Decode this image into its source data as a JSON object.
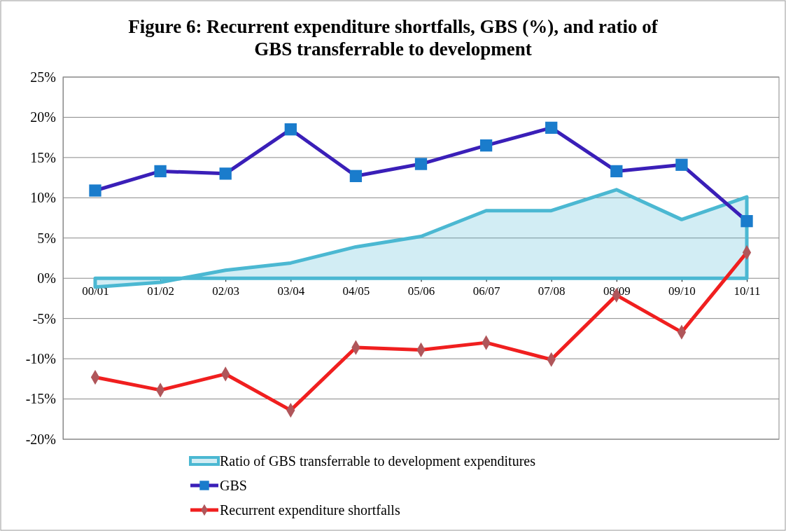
{
  "chart_data": {
    "type": "line",
    "title": "Figure 6: Recurrent expenditure shortfalls, GBS (%), and ratio of GBS transferrable to development",
    "categories": [
      "00/01",
      "01/02",
      "02/03",
      "03/04",
      "04/05",
      "05/06",
      "06/07",
      "07/08",
      "08/09",
      "09/10",
      "10/11"
    ],
    "series": [
      {
        "name": "Ratio of GBS transferrable to development expenditures",
        "type": "area",
        "color": "#4bb8d2",
        "marker": "none",
        "values": [
          -1.1,
          -0.5,
          1.0,
          1.9,
          3.9,
          5.2,
          8.4,
          8.4,
          11.0,
          7.3,
          10.1
        ]
      },
      {
        "name": "GBS",
        "color": "#3a1fb8",
        "marker": "square",
        "values": [
          10.9,
          13.3,
          13.0,
          18.5,
          12.7,
          14.2,
          16.5,
          18.7,
          13.3,
          14.1,
          7.1
        ]
      },
      {
        "name": "Recurrent expenditure shortfalls",
        "color": "#f01f1f",
        "marker": "diamond",
        "values": [
          -12.3,
          -13.9,
          -11.9,
          -16.4,
          -8.6,
          -8.9,
          -8.0,
          -10.1,
          -2.1,
          -6.7,
          3.2
        ]
      }
    ],
    "ylim": [
      -20,
      25
    ],
    "yticks": [
      {
        "value": -20,
        "label": "-20%"
      },
      {
        "value": -15,
        "label": "-15%"
      },
      {
        "value": -10,
        "label": "-10%"
      },
      {
        "value": -5,
        "label": "-5%"
      },
      {
        "value": 0,
        "label": "0%"
      },
      {
        "value": 5,
        "label": "5%"
      },
      {
        "value": 10,
        "label": "10%"
      },
      {
        "value": 15,
        "label": "15%"
      },
      {
        "value": 20,
        "label": "20%"
      },
      {
        "value": 25,
        "label": "25%"
      }
    ],
    "grid": "y",
    "legend": "bottom"
  }
}
